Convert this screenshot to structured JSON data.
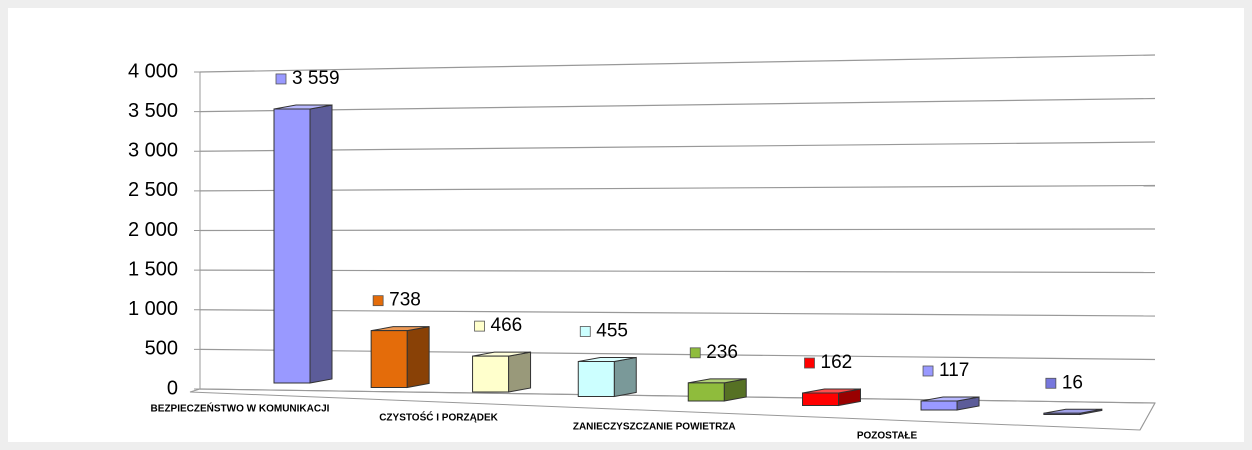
{
  "chart_data": {
    "type": "bar3d",
    "categories": [
      "BEZPIECZEŃSTWO W KOMUNIKACJI",
      null,
      "CZYSTOŚĆ I PORZĄDEK",
      null,
      "ZANIECZYSZCZANIE POWIETRZA",
      null,
      "POZOSTAŁE",
      null
    ],
    "values": [
      3559,
      738,
      466,
      455,
      236,
      162,
      117,
      16
    ],
    "value_labels": [
      "3 559",
      "738",
      "466",
      "455",
      "236",
      "162",
      "117",
      "16"
    ],
    "colors": [
      "#9999ff",
      "#e46c0a",
      "#ffffcc",
      "#ccffff",
      "#8fbc3c",
      "#ff0000",
      "#9999ff",
      "#7777dd"
    ],
    "ylim": [
      0,
      4000
    ],
    "yticks": [
      0,
      500,
      {
        "value": 1000,
        "label": "1 000"
      },
      {
        "value": 1500,
        "label": "1 500"
      },
      {
        "value": 2000,
        "label": "2 000"
      },
      {
        "value": 2500,
        "label": "2 500"
      },
      {
        "value": 3000,
        "label": "3 000"
      },
      {
        "value": 3500,
        "label": "3 500"
      },
      {
        "value": 4000,
        "label": "4 000"
      }
    ],
    "grid": true
  }
}
